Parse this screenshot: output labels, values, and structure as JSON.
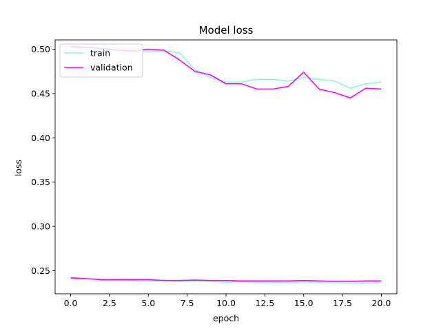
{
  "chart_data": {
    "type": "line",
    "title": "Model loss",
    "xlabel": "epoch",
    "ylabel": "loss",
    "xlim": [
      -1.0,
      21.0
    ],
    "ylim": [
      0.224,
      0.5105
    ],
    "x_ticks": [
      0.0,
      2.5,
      5.0,
      7.5,
      10.0,
      12.5,
      15.0,
      17.5,
      20.0
    ],
    "x_tick_labels": [
      "0.0",
      "2.5",
      "5.0",
      "7.5",
      "10.0",
      "12.5",
      "15.0",
      "17.5",
      "20.0"
    ],
    "y_ticks": [
      0.25,
      0.3,
      0.35,
      0.4,
      0.45,
      0.5
    ],
    "y_tick_labels": [
      "0.25",
      "0.30",
      "0.35",
      "0.40",
      "0.45",
      "0.50"
    ],
    "grid": false,
    "legend_position": "upper-left",
    "legend": [
      "train",
      "validation"
    ],
    "colors": {
      "train": "#7fffd4",
      "validation": "#ff00ff"
    },
    "series": [
      {
        "name": "train",
        "color": "#7fffd4",
        "x": [
          0,
          1,
          2,
          3,
          4,
          5,
          6,
          7,
          8,
          9,
          10,
          11,
          12,
          13,
          14,
          15,
          16,
          17,
          18,
          19,
          20
        ],
        "values": [
          0.503,
          0.5,
          0.499,
          0.499,
          0.497,
          0.497,
          0.498,
          0.496,
          0.477,
          0.468,
          0.463,
          0.463,
          0.466,
          0.466,
          0.464,
          0.468,
          0.466,
          0.464,
          0.456,
          0.461,
          0.463
        ]
      },
      {
        "name": "validation",
        "color": "#ff00ff",
        "x": [
          0,
          1,
          2,
          3,
          4,
          5,
          6,
          7,
          8,
          9,
          10,
          11,
          12,
          13,
          14,
          15,
          16,
          17,
          18,
          19,
          20
        ],
        "values": [
          0.503,
          0.502,
          0.501,
          0.499,
          0.498,
          0.5,
          0.499,
          0.488,
          0.475,
          0.471,
          0.461,
          0.461,
          0.455,
          0.455,
          0.458,
          0.474,
          0.455,
          0.451,
          0.445,
          0.456,
          0.455
        ]
      },
      {
        "name": "",
        "color": "#7fffd4",
        "x": [
          0,
          1,
          2,
          3,
          4,
          5,
          6,
          7,
          8,
          9,
          10,
          11,
          12,
          13,
          14,
          15,
          16,
          17,
          18,
          19,
          20
        ],
        "values": [
          0.2425,
          0.241,
          0.24,
          0.2395,
          0.239,
          0.2385,
          0.2385,
          0.238,
          0.2385,
          0.238,
          0.237,
          0.2375,
          0.237,
          0.237,
          0.2365,
          0.2375,
          0.2365,
          0.2365,
          0.236,
          0.236,
          0.2365
        ]
      },
      {
        "name": "",
        "color": "#ff00ff",
        "x": [
          0,
          1,
          2,
          3,
          4,
          5,
          6,
          7,
          8,
          9,
          10,
          11,
          12,
          13,
          14,
          15,
          16,
          17,
          18,
          19,
          20
        ],
        "values": [
          0.242,
          0.241,
          0.24,
          0.24,
          0.24,
          0.24,
          0.239,
          0.239,
          0.2395,
          0.239,
          0.239,
          0.2385,
          0.2385,
          0.2385,
          0.2385,
          0.239,
          0.2385,
          0.238,
          0.238,
          0.2385,
          0.2385
        ]
      }
    ]
  }
}
